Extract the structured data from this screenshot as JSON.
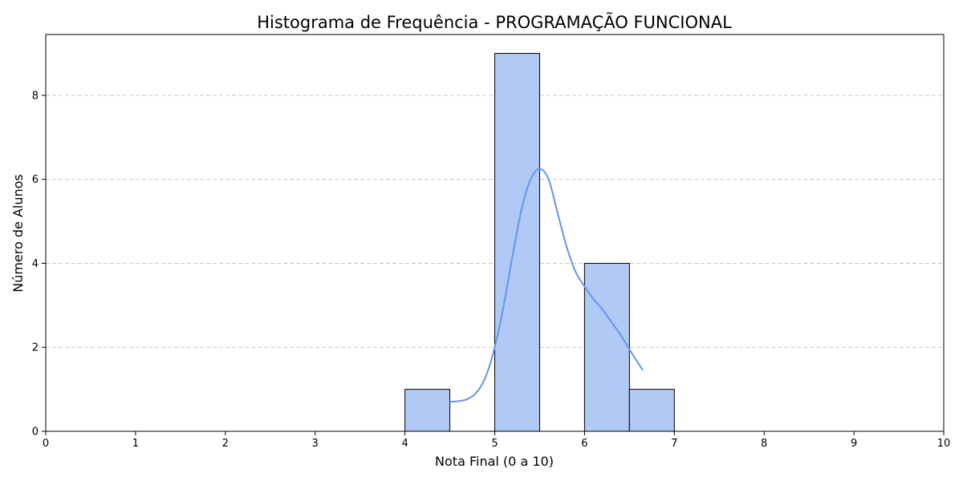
{
  "chart_data": {
    "type": "bar",
    "title": "Histograma de Frequência - PROGRAMAÇÃO FUNCIONAL",
    "xlabel": "Nota Final (0 a 10)",
    "ylabel": "Número de Alunos",
    "xlim": [
      0,
      10
    ],
    "ylim": [
      0,
      9.45
    ],
    "x_ticks": [
      "0",
      "1",
      "2",
      "3",
      "4",
      "5",
      "6",
      "7",
      "8",
      "9",
      "10"
    ],
    "y_ticks": [
      "0",
      "2",
      "4",
      "6",
      "8"
    ],
    "grid": "horizontal-dashed",
    "bins": [
      {
        "start": 4.0,
        "end": 4.5,
        "count": 1
      },
      {
        "start": 4.5,
        "end": 5.0,
        "count": 0
      },
      {
        "start": 5.0,
        "end": 5.5,
        "count": 9
      },
      {
        "start": 5.5,
        "end": 6.0,
        "count": 0
      },
      {
        "start": 6.0,
        "end": 6.5,
        "count": 4
      },
      {
        "start": 6.5,
        "end": 7.0,
        "count": 1
      }
    ],
    "kde_curve": {
      "x": [
        4.5,
        4.6,
        4.7,
        4.8,
        4.9,
        5.0,
        5.1,
        5.2,
        5.3,
        5.4,
        5.5,
        5.6,
        5.7,
        5.8,
        5.9,
        6.0,
        6.1,
        6.2,
        6.3,
        6.4,
        6.5,
        6.65
      ],
      "y": [
        0.7,
        0.72,
        0.77,
        0.93,
        1.3,
        2.0,
        3.0,
        4.2,
        5.3,
        6.0,
        6.25,
        6.0,
        5.2,
        4.4,
        3.8,
        3.45,
        3.15,
        2.9,
        2.6,
        2.3,
        1.95,
        1.45
      ]
    },
    "colors": {
      "bar_fill": "#b0c9f5",
      "bar_edge": "#000000",
      "kde_line": "#6495ed",
      "grid": "#c8c8c8"
    }
  }
}
